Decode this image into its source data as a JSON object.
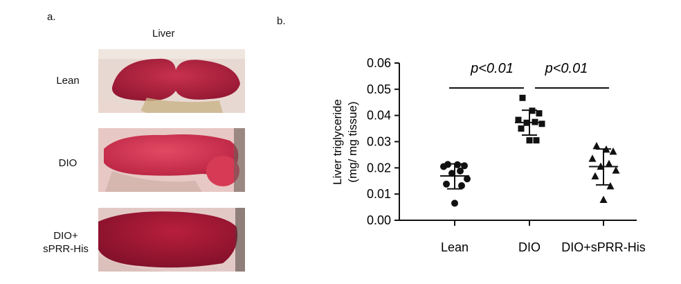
{
  "panel_a": {
    "label": "a.",
    "title": "Liver",
    "rows": [
      {
        "label": "Lean",
        "tone": "#b3213f"
      },
      {
        "label": "DIO",
        "tone": "#d9344f"
      },
      {
        "label": "DIO+\nsPRR-His",
        "tone": "#9c1a32"
      }
    ]
  },
  "chart_data": {
    "type": "scatter",
    "panel_label": "b.",
    "ylabel_line1": "Liver triglyceride",
    "ylabel_line2": "(mg/ mg tissue)",
    "ylim": [
      0.0,
      0.06
    ],
    "yticks": [
      "0.00",
      "0.01",
      "0.02",
      "0.03",
      "0.04",
      "0.05",
      "0.06"
    ],
    "categories": [
      "Lean",
      "DIO",
      "DIO+sPRR-His"
    ],
    "series": [
      {
        "marker": "circle",
        "values": [
          0.0213,
          0.0212,
          0.0208,
          0.0205,
          0.0188,
          0.0179,
          0.0158,
          0.0138,
          0.0132,
          0.0065
        ],
        "mean": 0.0169,
        "sd_low": 0.012,
        "sd_high": 0.0215
      },
      {
        "marker": "square",
        "values": [
          0.0467,
          0.0418,
          0.0408,
          0.0383,
          0.0375,
          0.0372,
          0.0368,
          0.035,
          0.0305,
          0.0305
        ],
        "mean": 0.0373,
        "sd_low": 0.0325,
        "sd_high": 0.042
      },
      {
        "marker": "triangle",
        "values": [
          0.0283,
          0.027,
          0.0262,
          0.0235,
          0.0215,
          0.0205,
          0.019,
          0.0168,
          0.013,
          0.0078
        ],
        "mean": 0.0205,
        "sd_low": 0.0135,
        "sd_high": 0.0272
      }
    ],
    "comparisons": [
      {
        "from": 0,
        "to": 1,
        "label": "p<0.01",
        "y": 0.0505
      },
      {
        "from": 1,
        "to": 2,
        "label": "p<0.01",
        "y": 0.0505
      }
    ]
  }
}
